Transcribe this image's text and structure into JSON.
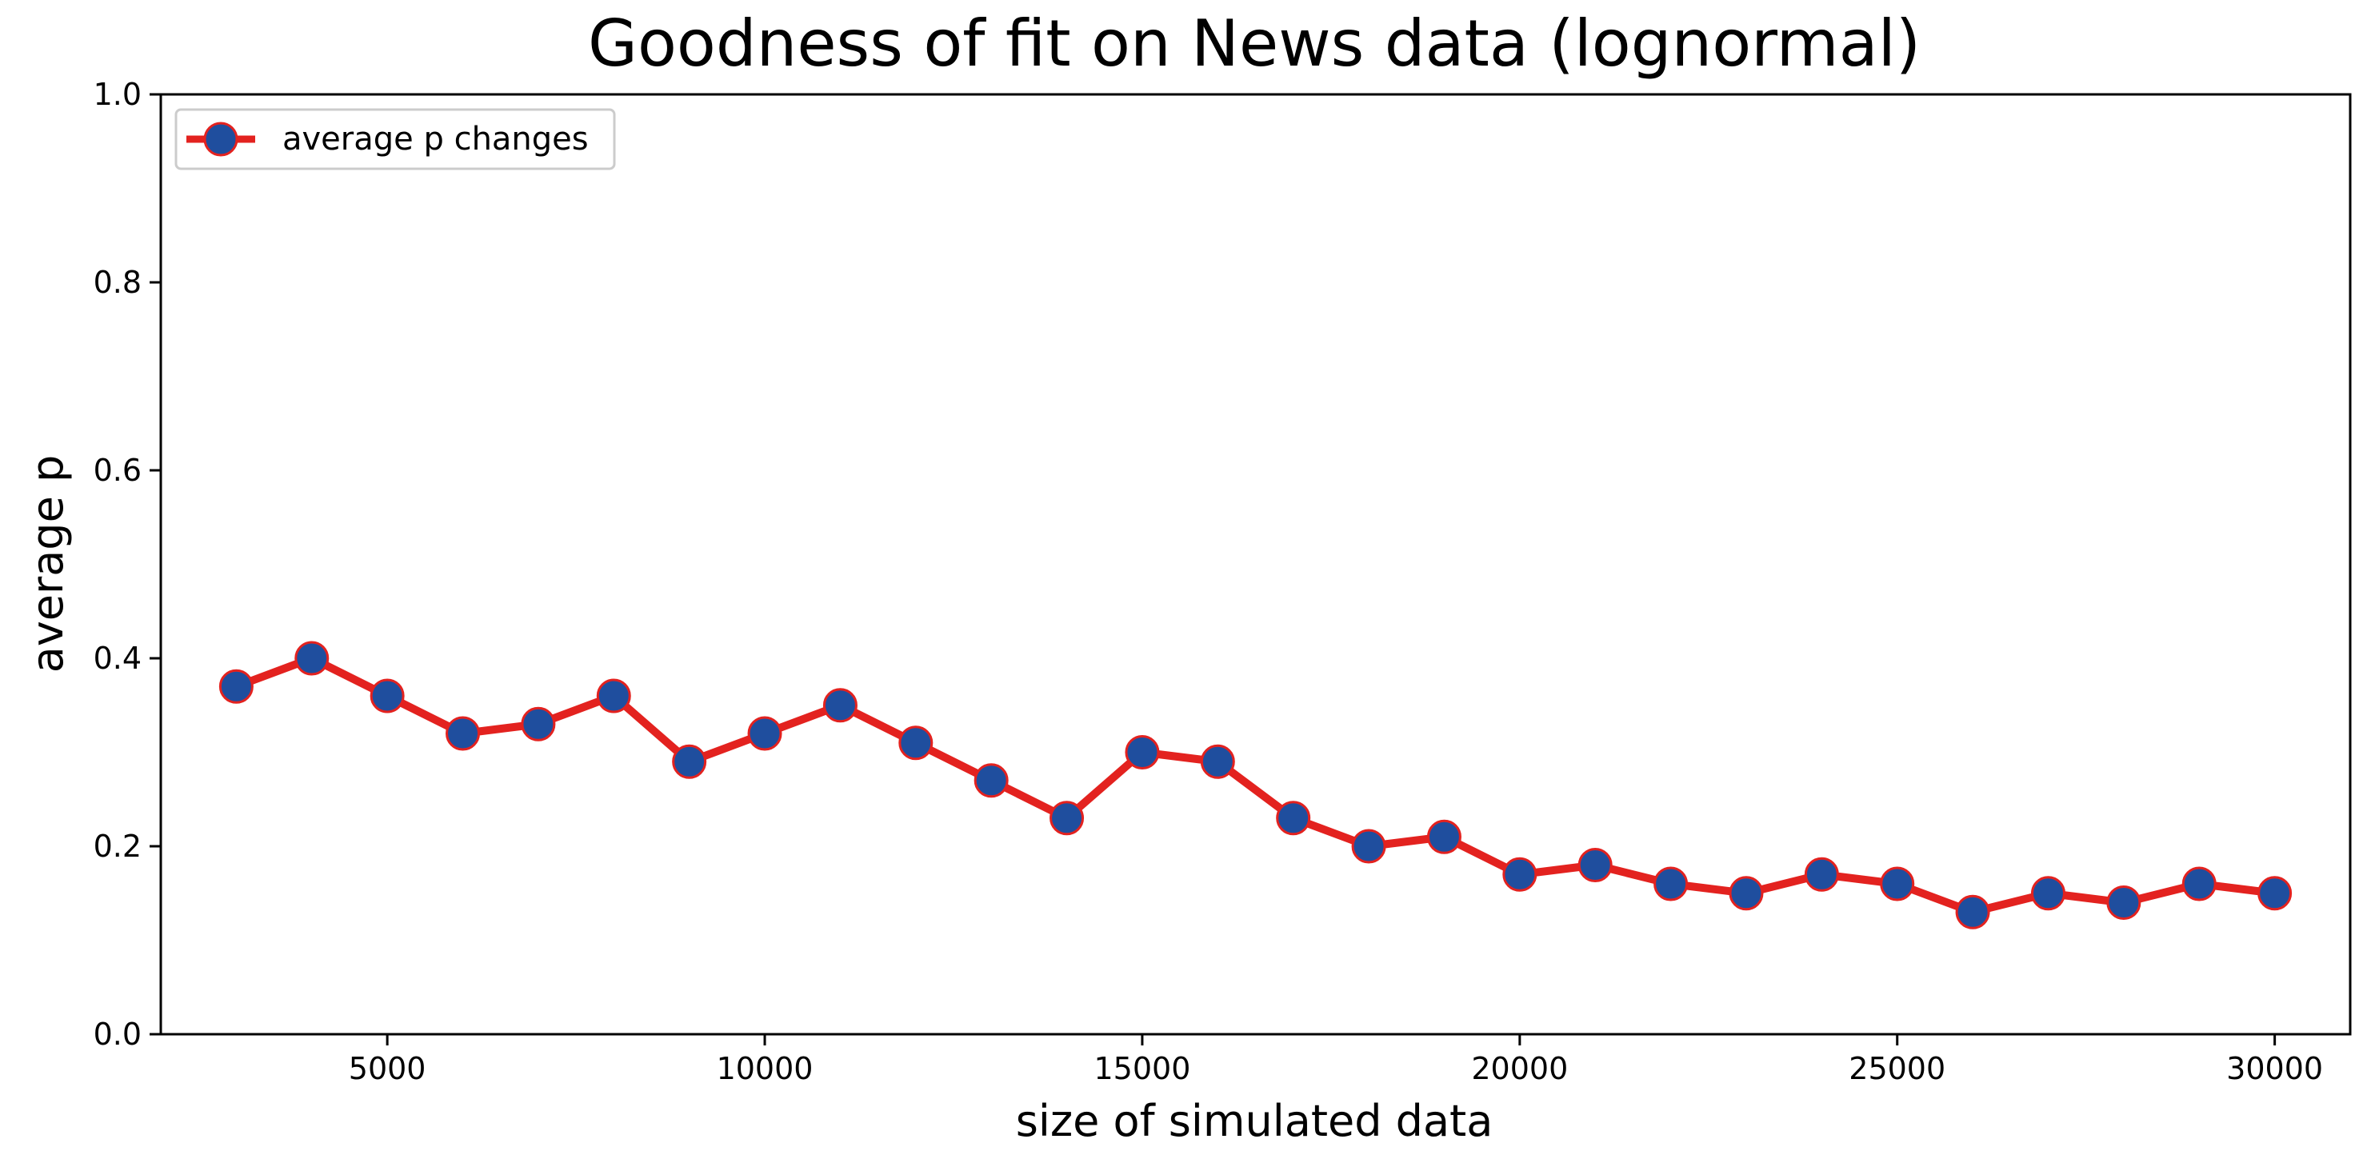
{
  "chart_data": {
    "type": "line",
    "title": "Goodness of fit on News data (lognormal)",
    "xlabel": "size of simulated data",
    "ylabel": "average p",
    "xlim": [
      2000,
      31000
    ],
    "ylim": [
      0.0,
      1.0
    ],
    "xticks": [
      5000,
      10000,
      15000,
      20000,
      25000,
      30000
    ],
    "xtick_labels": [
      "5000",
      "10000",
      "15000",
      "20000",
      "25000",
      "30000"
    ],
    "yticks": [
      0.0,
      0.2,
      0.4,
      0.6,
      0.8,
      1.0
    ],
    "ytick_labels": [
      "0.0",
      "0.2",
      "0.4",
      "0.6",
      "0.8",
      "1.0"
    ],
    "grid": false,
    "legend_position": "top-left",
    "x": [
      3000,
      4000,
      5000,
      6000,
      7000,
      8000,
      9000,
      10000,
      11000,
      12000,
      13000,
      14000,
      15000,
      16000,
      17000,
      18000,
      19000,
      20000,
      21000,
      22000,
      23000,
      24000,
      25000,
      26000,
      27000,
      28000,
      29000,
      30000
    ],
    "series": [
      {
        "name": "average p changes",
        "line_color": "#e3221f",
        "marker_face_color": "#1f4e9e",
        "marker_edge_color": "#e3221f",
        "values": [
          0.37,
          0.4,
          0.36,
          0.32,
          0.33,
          0.36,
          0.29,
          0.32,
          0.35,
          0.31,
          0.27,
          0.23,
          0.3,
          0.29,
          0.23,
          0.2,
          0.21,
          0.17,
          0.18,
          0.16,
          0.15,
          0.17,
          0.16,
          0.13,
          0.15,
          0.14,
          0.16,
          0.15
        ]
      }
    ]
  }
}
